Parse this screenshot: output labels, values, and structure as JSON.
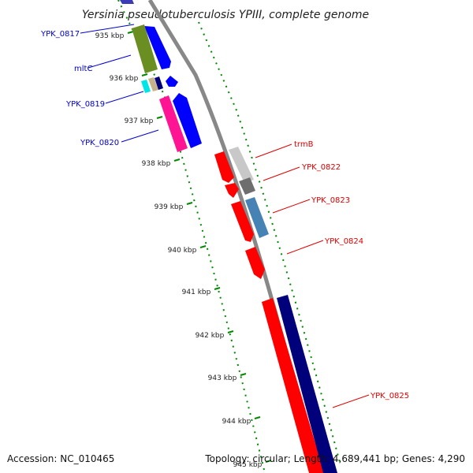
{
  "title": "Yersinia pseudotuberculosis YPIII, complete genome",
  "accession": "Accession: NC_010465",
  "topology": "Topology: circular; Length: 4,689,441 bp; Genes: 4,290",
  "kbp_labels": [
    "935 kbp",
    "936 kbp",
    "937 kbp",
    "938 kbp",
    "939 kbp",
    "940 kbp",
    "941 kbp",
    "942 kbp",
    "943 kbp",
    "944 kbp",
    "945 kbp"
  ],
  "left_genes": [
    "YPK_0817",
    "mltC",
    "YPK_0819",
    "YPK_0820"
  ],
  "right_genes": [
    "trmB",
    "YPK_0822",
    "YPK_0823",
    "YPK_0824",
    "YPK_0825"
  ],
  "colors": {
    "left_label": "#0000cc",
    "right_label": "#dd0000",
    "backbone": "#888888",
    "tick": "#008800",
    "red": "#ff0000",
    "navy": "#00007a",
    "blue": "#0000ff",
    "olive": "#6b8e23",
    "magenta": "#ff1493",
    "cyan": "#00e5e5",
    "steel": "#4682b4",
    "grey_light": "#c8c8c8",
    "grey_dark": "#6e6e6e"
  }
}
